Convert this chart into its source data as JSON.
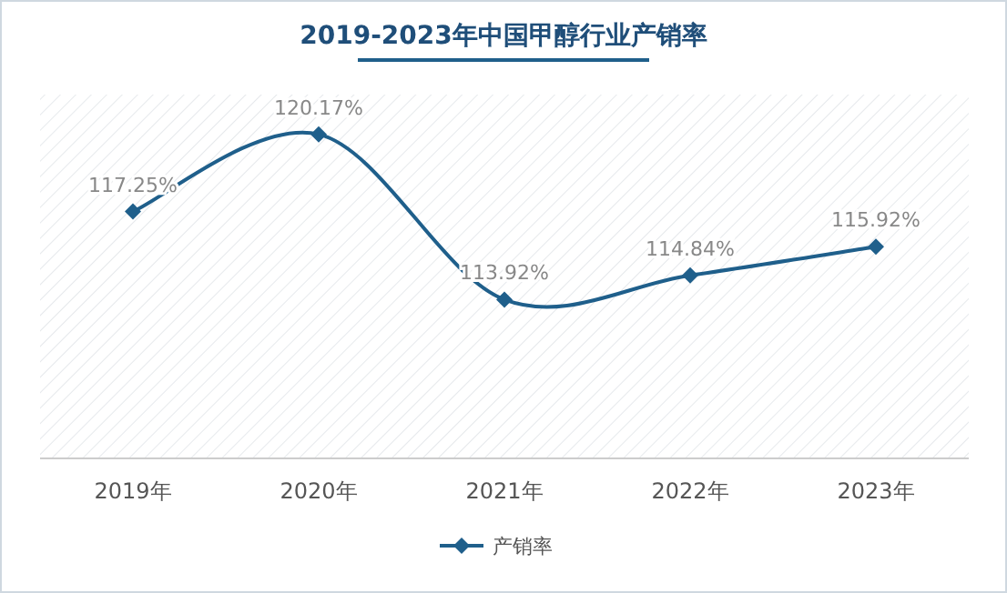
{
  "chart_data": {
    "type": "line",
    "title": "2019-2023年中国甲醇行业产销率",
    "categories": [
      "2019年",
      "2020年",
      "2021年",
      "2022年",
      "2023年"
    ],
    "series": [
      {
        "name": "产销率",
        "color": "#1f5f8b",
        "values": [
          117.25,
          120.17,
          113.92,
          114.84,
          115.92
        ],
        "value_labels": [
          "117.25%",
          "120.17%",
          "113.92%",
          "114.84%",
          "115.92%"
        ]
      }
    ],
    "marker": "diamond",
    "legend": "bottom",
    "grid": false
  }
}
